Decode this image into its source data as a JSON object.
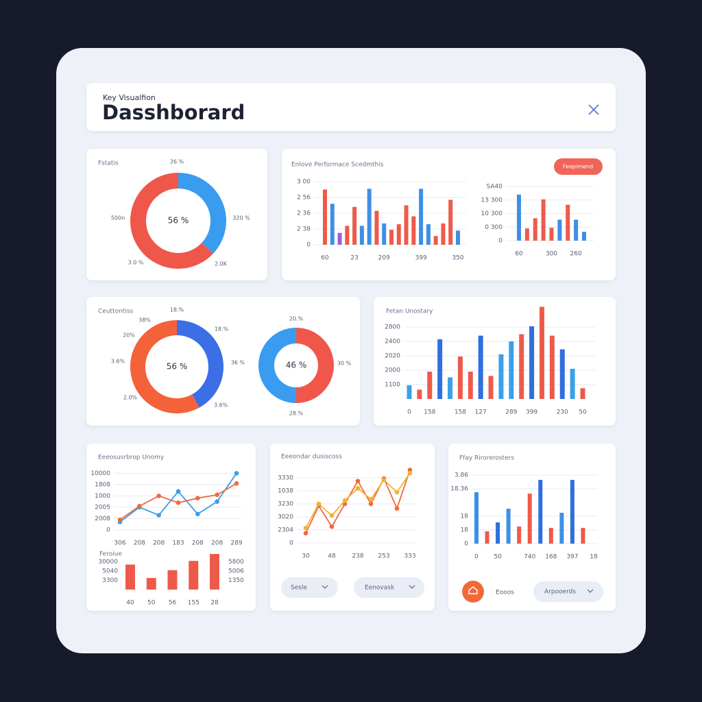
{
  "header": {
    "subtitle": "Key Visualfion",
    "title": "Dasshborard"
  },
  "controls": {
    "report_button": "Feapimend",
    "select_1": "Sesle",
    "select_2": "Eenovask",
    "footer_label": "Eooos",
    "select_3": "Arpooerds"
  },
  "chart_data": [
    {
      "type": "pie",
      "title": "Fstatis",
      "values": [
        37,
        63
      ],
      "colors": [
        "#3a9cf0",
        "#f0574b"
      ],
      "center_label": "56 %",
      "annotations": [
        "26.%",
        "320 %",
        "2.0K",
        "3.0 %",
        "500n"
      ]
    },
    {
      "type": "bar",
      "title": "Enlove Performace Scedmthis",
      "categories": [
        "60",
        null,
        null,
        null,
        "23",
        null,
        null,
        null,
        "209",
        null,
        null,
        null,
        null,
        "399",
        null,
        null,
        null,
        null,
        "350"
      ],
      "values": [
        3.5,
        2.6,
        0.75,
        1.2,
        2.4,
        1.2,
        3.55,
        2.15,
        1.35,
        0.95,
        1.3,
        2.5,
        1.8,
        3.55,
        1.3,
        0.55,
        1.35,
        2.85,
        0.9
      ],
      "colors": [
        "#ee5a4a",
        "#3d8fe6",
        "#9b5de5",
        "#ee5a4a",
        "#ee5a4a",
        "#3d8fe6",
        "#3d8fe6",
        "#ee5a4a",
        "#3d8fe6",
        "#ee5a4a",
        "#ee5a4a",
        "#ee5a4a",
        "#ee5a4a",
        "#3d8fe6",
        "#3d8fe6",
        "#ee5a4a",
        "#ee5a4a",
        "#ee5a4a",
        "#3d8fe6"
      ],
      "ylim": [
        0,
        4
      ],
      "yticks": [
        0,
        {
          "value": 1,
          "label": "2 38"
        },
        {
          "value": 2,
          "label": "2 36"
        },
        {
          "value": 3,
          "label": "2 56"
        },
        {
          "value": 4,
          "label": "3 00"
        }
      ],
      "grid": true
    },
    {
      "type": "bar",
      "categories": [
        "60",
        null,
        null,
        null,
        "300",
        null,
        null,
        "260",
        null
      ],
      "values": [
        3.4,
        0.9,
        1.65,
        3.05,
        0.95,
        1.55,
        2.65,
        1.55,
        0.65
      ],
      "colors": [
        "#3d8fe6",
        "#ee5a4a",
        "#ee5a4a",
        "#ee5a4a",
        "#ee5a4a",
        "#3d8fe6",
        "#ee5a4a",
        "#3d8fe6",
        "#3d8fe6"
      ],
      "ylim": [
        0,
        4
      ],
      "yticks": [
        0,
        {
          "value": 1,
          "label": "0 300"
        },
        {
          "value": 2,
          "label": "10 300"
        },
        {
          "value": 3,
          "label": "13 300"
        },
        {
          "value": 4,
          "label": "SA40"
        }
      ],
      "grid": true
    },
    {
      "type": "pie",
      "title": "Ceuttontiss",
      "values": [
        42,
        58
      ],
      "colors": [
        "#3c6ee6",
        "#f4623a"
      ],
      "center_label": "56 %",
      "annotations": [
        "18.%",
        "38%",
        "20%",
        "18.%",
        "36 %",
        "3.6%",
        "2.0%",
        "3.6%"
      ]
    },
    {
      "type": "pie",
      "values": [
        50,
        50
      ],
      "colors": [
        "#f0574b",
        "#3a9cf0"
      ],
      "center_label": "46 %",
      "annotations": [
        "20.%",
        "30 %",
        "28.%"
      ]
    },
    {
      "type": "bar",
      "title": "Fetan Unostary",
      "categories": [
        "0",
        null,
        "158",
        null,
        null,
        "158",
        null,
        "127",
        null,
        null,
        "289",
        null,
        "399",
        null,
        null,
        "230",
        null,
        "50"
      ],
      "values": [
        0.95,
        0.65,
        1.9,
        4.15,
        1.5,
        2.95,
        1.9,
        4.4,
        1.6,
        3.1,
        4.0,
        4.5,
        5.05,
        6.4,
        4.4,
        3.45,
        2.1,
        0.75
      ],
      "colors": [
        "#3aa0ea",
        "#ee5a4a",
        "#ee5a4a",
        "#2f6fde",
        "#3aa0ea",
        "#ee5a4a",
        "#ee5a4a",
        "#2f6fde",
        "#ee5a4a",
        "#3aa0ea",
        "#3aa0ea",
        "#ee5a4a",
        "#2f6fde",
        "#ee5a4a",
        "#ee5a4a",
        "#2f6fde",
        "#3aa0ea",
        "#ee5a4a"
      ],
      "ylim": [
        0,
        6.5
      ],
      "yticks": [
        {
          "value": 1,
          "label": "1100"
        },
        {
          "value": 2,
          "label": "2000"
        },
        {
          "value": 3,
          "label": "2020"
        },
        {
          "value": 4,
          "label": "2400"
        },
        {
          "value": 5,
          "label": "2800"
        }
      ],
      "grid": true
    },
    {
      "type": "line",
      "title": "Eeeosusrbrop Unomy",
      "categories": [
        "306",
        "208",
        "208",
        "183",
        "208",
        "208",
        "289"
      ],
      "series": [
        {
          "color": "#3a9ee6",
          "values": [
            0.7,
            2.0,
            1.3,
            3.4,
            1.4,
            2.5,
            5.0
          ]
        },
        {
          "color": "#f06a3c",
          "values": [
            0.9,
            2.1,
            3.0,
            2.4,
            2.8,
            3.1,
            4.1
          ]
        }
      ],
      "ylim": [
        0,
        5.2
      ],
      "yticks": [
        0,
        {
          "value": 1,
          "label": "2008"
        },
        {
          "value": 2,
          "label": "2005"
        },
        {
          "value": 3,
          "label": "1000"
        },
        {
          "value": 4,
          "label": "1808"
        },
        {
          "value": 5,
          "label": "10000"
        }
      ],
      "grid": true
    },
    {
      "type": "bar",
      "title": "Feroiue",
      "categories": [
        "40",
        "50",
        "56",
        "155",
        "28"
      ],
      "values": [
        2.7,
        1.25,
        2.1,
        3.1,
        3.85
      ],
      "colors": [
        "#ee5a4a",
        "#ee5a4a",
        "#ee5a4a",
        "#ee5a4a",
        "#ee5a4a"
      ],
      "ylim": [
        0,
        4
      ],
      "yticks": [
        {
          "value": 1,
          "label": "3300"
        },
        {
          "value": 2,
          "label": "5040"
        },
        {
          "value": 3,
          "label": "30000"
        }
      ],
      "y2lim": [
        0,
        4
      ],
      "y2ticks": [
        {
          "value": 1,
          "label": "1350"
        },
        {
          "value": 2,
          "label": "5006"
        },
        {
          "value": 3,
          "label": "5800"
        }
      ],
      "grid": false
    },
    {
      "type": "line",
      "title": "Eeeondar dusiscoss",
      "categories": [
        "30",
        null,
        "48",
        null,
        "238",
        null,
        "253",
        null,
        "333"
      ],
      "series": [
        {
          "color": "#f06a3c",
          "values": [
            0.75,
            2.85,
            1.25,
            3.0,
            4.75,
            3.0,
            4.95,
            2.65,
            5.6
          ]
        },
        {
          "color": "#f2b233",
          "values": [
            1.15,
            3.0,
            2.1,
            3.25,
            4.2,
            3.35,
            4.85,
            3.9,
            5.35
          ]
        }
      ],
      "ylim": [
        0,
        5.8
      ],
      "yticks": [
        0,
        {
          "value": 1,
          "label": "2304"
        },
        {
          "value": 2,
          "label": "3020"
        },
        {
          "value": 3,
          "label": "3230"
        },
        {
          "value": 4,
          "label": "1038"
        },
        {
          "value": 5,
          "label": "3330"
        }
      ],
      "grid": true
    },
    {
      "type": "bar",
      "title": "Ffay Rirorerosters",
      "categories": [
        "0",
        null,
        "50",
        null,
        null,
        "740",
        null,
        "168",
        null,
        "397",
        null,
        "18"
      ],
      "values": [
        3.75,
        0.9,
        1.55,
        2.55,
        1.25,
        3.65,
        4.65,
        1.15,
        2.25,
        4.65,
        1.15,
        null
      ],
      "colors": [
        "#3d8fe6",
        "#ee5a4a",
        "#2f6fde",
        "#3d8fe6",
        "#ee5a4a",
        "#ee5a4a",
        "#2f6fde",
        "#ee5a4a",
        "#3d8fe6",
        "#2f6fde",
        "#ee5a4a",
        "#ee5a4a"
      ],
      "ylim": [
        0,
        5.2
      ],
      "yticks": [
        0,
        {
          "value": 1,
          "label": "18"
        },
        {
          "value": 2,
          "label": "18"
        },
        {
          "value": 4,
          "label": "18.36"
        },
        {
          "value": 5,
          "label": "3.86"
        }
      ],
      "grid": true
    }
  ]
}
